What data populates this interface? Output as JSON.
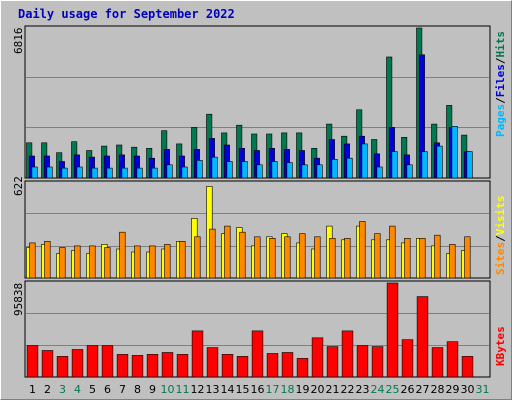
{
  "title": "Daily usage for September 2022",
  "colors": {
    "hits": "#007850",
    "files": "#0000d8",
    "pages": "#00b8ff",
    "visits": "#ffff00",
    "sites": "#ff8800",
    "kbytes": "#ff0000",
    "weekend_day": "#007850",
    "weekday": "#000000"
  },
  "panels": {
    "hits": {
      "ymax": "6816",
      "labels": [
        "Pages",
        "Files",
        "Hits"
      ],
      "sep": "/"
    },
    "visits": {
      "ymax": "622",
      "labels": [
        "Sites",
        "Visits"
      ],
      "sep": "/"
    },
    "kbytes": {
      "ymax": "95838",
      "labels": [
        "KBytes"
      ],
      "sep": ""
    }
  },
  "chart_data": [
    {
      "type": "bar",
      "title": "Daily usage for September 2022",
      "categories": [
        "1",
        "2",
        "3",
        "4",
        "5",
        "6",
        "7",
        "8",
        "9",
        "10",
        "11",
        "12",
        "13",
        "14",
        "15",
        "16",
        "17",
        "18",
        "19",
        "20",
        "21",
        "22",
        "23",
        "24",
        "25",
        "26",
        "27",
        "28",
        "29",
        "30",
        "31"
      ],
      "weekend_days": [
        "3",
        "4",
        "10",
        "11",
        "17",
        "18",
        "24",
        "25",
        "31"
      ],
      "ylim": [
        0,
        6816
      ],
      "series": [
        {
          "name": "Hits",
          "values": [
            1600,
            1600,
            1150,
            1650,
            1250,
            1450,
            1500,
            1400,
            1350,
            2150,
            1550,
            2300,
            2900,
            2050,
            2400,
            2000,
            2000,
            2050,
            2050,
            1350,
            2450,
            1900,
            3100,
            1750,
            5500,
            1850,
            6816,
            2450,
            3300,
            1950,
            0
          ]
        },
        {
          "name": "Files",
          "values": [
            1000,
            1000,
            750,
            1050,
            950,
            1000,
            1050,
            1000,
            900,
            1300,
            1000,
            1300,
            1800,
            1500,
            1350,
            1250,
            1350,
            1300,
            1250,
            900,
            1750,
            1550,
            1900,
            1100,
            2300,
            1050,
            5600,
            1600,
            2300,
            1200,
            0
          ]
        },
        {
          "name": "Pages",
          "values": [
            500,
            500,
            450,
            500,
            450,
            450,
            450,
            450,
            450,
            600,
            500,
            800,
            950,
            750,
            750,
            600,
            750,
            700,
            600,
            600,
            850,
            900,
            1550,
            500,
            1200,
            600,
            1200,
            1450,
            2350,
            1200,
            0
          ]
        }
      ]
    },
    {
      "type": "bar",
      "categories": [
        "1",
        "2",
        "3",
        "4",
        "5",
        "6",
        "7",
        "8",
        "9",
        "10",
        "11",
        "12",
        "13",
        "14",
        "15",
        "16",
        "17",
        "18",
        "19",
        "20",
        "21",
        "22",
        "23",
        "24",
        "25",
        "26",
        "27",
        "28",
        "29",
        "30",
        "31"
      ],
      "ylim": [
        0,
        622
      ],
      "series": [
        {
          "name": "Visits",
          "values": [
            200,
            220,
            160,
            180,
            160,
            220,
            190,
            170,
            170,
            190,
            240,
            390,
            600,
            290,
            330,
            210,
            270,
            290,
            230,
            190,
            340,
            250,
            340,
            250,
            250,
            230,
            260,
            210,
            160,
            180,
            0
          ]
        },
        {
          "name": "Sites",
          "values": [
            230,
            240,
            200,
            210,
            210,
            200,
            300,
            210,
            210,
            220,
            240,
            270,
            320,
            340,
            300,
            270,
            260,
            270,
            290,
            270,
            260,
            260,
            370,
            290,
            340,
            260,
            260,
            280,
            220,
            270,
            0
          ]
        }
      ]
    },
    {
      "type": "bar",
      "categories": [
        "1",
        "2",
        "3",
        "4",
        "5",
        "6",
        "7",
        "8",
        "9",
        "10",
        "11",
        "12",
        "13",
        "14",
        "15",
        "16",
        "17",
        "18",
        "19",
        "20",
        "21",
        "22",
        "23",
        "24",
        "25",
        "26",
        "27",
        "28",
        "29",
        "30",
        "31"
      ],
      "ylim": [
        0,
        95838
      ],
      "series": [
        {
          "name": "KBytes",
          "values": [
            32000,
            27000,
            21000,
            28000,
            32000,
            32000,
            23000,
            22000,
            23000,
            25000,
            23000,
            47000,
            30000,
            23000,
            21000,
            47000,
            24000,
            25000,
            19000,
            40000,
            31000,
            47000,
            32000,
            31000,
            95838,
            38000,
            82000,
            30000,
            36000,
            21000,
            0
          ]
        }
      ]
    }
  ]
}
